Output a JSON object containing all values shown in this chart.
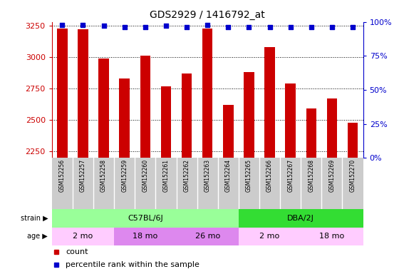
{
  "title": "GDS2929 / 1416792_at",
  "samples": [
    "GSM152256",
    "GSM152257",
    "GSM152258",
    "GSM152259",
    "GSM152260",
    "GSM152261",
    "GSM152262",
    "GSM152263",
    "GSM152264",
    "GSM152265",
    "GSM152266",
    "GSM152267",
    "GSM152268",
    "GSM152269",
    "GSM152270"
  ],
  "counts": [
    3230,
    3220,
    2990,
    2830,
    3010,
    2770,
    2870,
    3225,
    2620,
    2880,
    3080,
    2790,
    2590,
    2670,
    2480
  ],
  "percentile_ranks": [
    98,
    98,
    97,
    96,
    96,
    97,
    96,
    98,
    96,
    96,
    96,
    96,
    96,
    96,
    96
  ],
  "ymin": 2200,
  "ymax": 3280,
  "yticks": [
    2250,
    2500,
    2750,
    3000,
    3250
  ],
  "right_yticks": [
    0,
    25,
    50,
    75,
    100
  ],
  "bar_color": "#cc0000",
  "dot_color": "#0000cc",
  "bar_base": 2200,
  "strain_groups": [
    {
      "label": "C57BL/6J",
      "start": 0,
      "end": 9,
      "color": "#99ff99"
    },
    {
      "label": "DBA/2J",
      "start": 9,
      "end": 15,
      "color": "#33dd33"
    }
  ],
  "age_groups": [
    {
      "label": "2 mo",
      "start": 0,
      "end": 3,
      "color": "#ffccff"
    },
    {
      "label": "18 mo",
      "start": 3,
      "end": 6,
      "color": "#dd88ee"
    },
    {
      "label": "26 mo",
      "start": 6,
      "end": 9,
      "color": "#dd88ee"
    },
    {
      "label": "2 mo",
      "start": 9,
      "end": 12,
      "color": "#ffccff"
    },
    {
      "label": "18 mo",
      "start": 12,
      "end": 15,
      "color": "#ffccff"
    }
  ],
  "legend_count_color": "#cc0000",
  "legend_dot_color": "#0000cc",
  "axis_label_color_left": "#cc0000",
  "axis_label_color_right": "#0000cc",
  "bg_color": "#ffffff",
  "sample_bg": "#cccccc"
}
